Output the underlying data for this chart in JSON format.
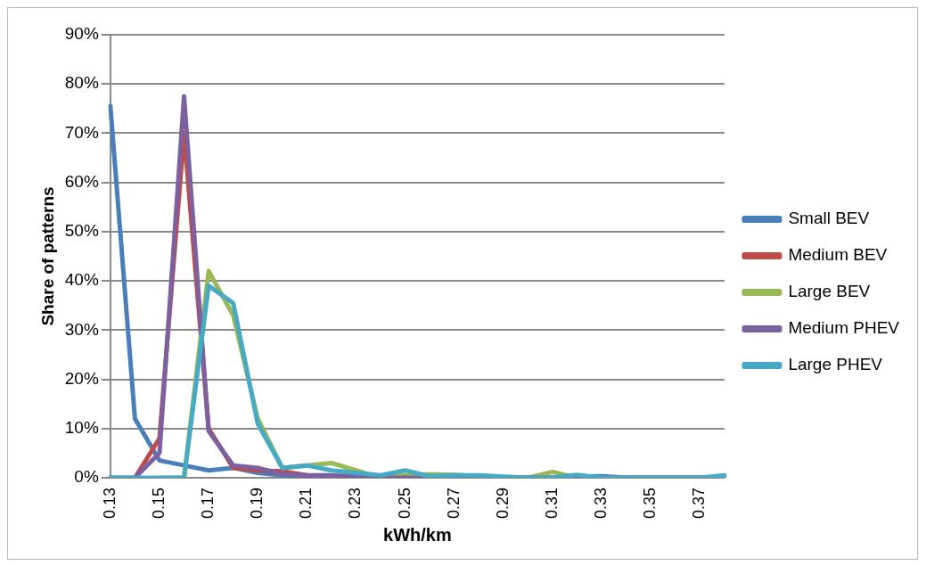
{
  "chart_data": {
    "type": "line",
    "xlabel": "kWh/km",
    "ylabel": "Share of patterns",
    "categories": [
      "0.13",
      null,
      "0.15",
      null,
      "0.17",
      null,
      "0.19",
      null,
      "0.21",
      null,
      "0.23",
      null,
      "0.25",
      null,
      "0.27",
      null,
      "0.29",
      null,
      "0.31",
      null,
      "0.33",
      null,
      "0.35",
      null,
      "0.37",
      null
    ],
    "series": [
      {
        "name": "Small BEV",
        "color": "#4a7ebb",
        "values": [
          75.5,
          12,
          3.5,
          2.5,
          1.5,
          2,
          1,
          0.5,
          0,
          0.3,
          0.5,
          0.3,
          0,
          0.3,
          0.3,
          0.2,
          0,
          0,
          0,
          0.2,
          0.3,
          0,
          0,
          0,
          0,
          0
        ]
      },
      {
        "name": "Medium BEV",
        "color": "#be4b48",
        "values": [
          null,
          0,
          8,
          70,
          10,
          2,
          1.5,
          1.3,
          0.5,
          null,
          null,
          null,
          null,
          null,
          null,
          null,
          null,
          null,
          null,
          null,
          null,
          null,
          null,
          null,
          null,
          null
        ]
      },
      {
        "name": "Large BEV",
        "color": "#98b954",
        "values": [
          null,
          null,
          0,
          0,
          42,
          33,
          12,
          2,
          2.5,
          3,
          1.5,
          0,
          0.5,
          0.7,
          0.6,
          0.3,
          0,
          0,
          1.2,
          0,
          0,
          null,
          null,
          null,
          null,
          null
        ]
      },
      {
        "name": "Medium PHEV",
        "color": "#7d60a0",
        "values": [
          0,
          0,
          5,
          77.5,
          9.5,
          2.5,
          2,
          0.7,
          0.5,
          0.5,
          0,
          0,
          0,
          0,
          0,
          0,
          0,
          0,
          0,
          0,
          0,
          0,
          0,
          0,
          0,
          0
        ]
      },
      {
        "name": "Large PHEV",
        "color": "#46aac5",
        "values": [
          0,
          0,
          0,
          0,
          39,
          35.5,
          11,
          2,
          2.5,
          1.5,
          1,
          0.5,
          1.5,
          0.3,
          0.5,
          0.5,
          0.2,
          0,
          0,
          0.6,
          0,
          0,
          0,
          0,
          0,
          0.5
        ]
      }
    ],
    "ylim": [
      0,
      90
    ],
    "yticks": [
      {
        "value": 0,
        "label": "0%"
      },
      {
        "value": 10,
        "label": "10%"
      },
      {
        "value": 20,
        "label": "20%"
      },
      {
        "value": 30,
        "label": "30%"
      },
      {
        "value": 40,
        "label": "40%"
      },
      {
        "value": 50,
        "label": "50%"
      },
      {
        "value": 60,
        "label": "60%"
      },
      {
        "value": 70,
        "label": "70%"
      },
      {
        "value": 80,
        "label": "80%"
      },
      {
        "value": 90,
        "label": "90%"
      }
    ],
    "grid": "y",
    "legend": "right",
    "marker": "none",
    "line_style": "solid"
  }
}
